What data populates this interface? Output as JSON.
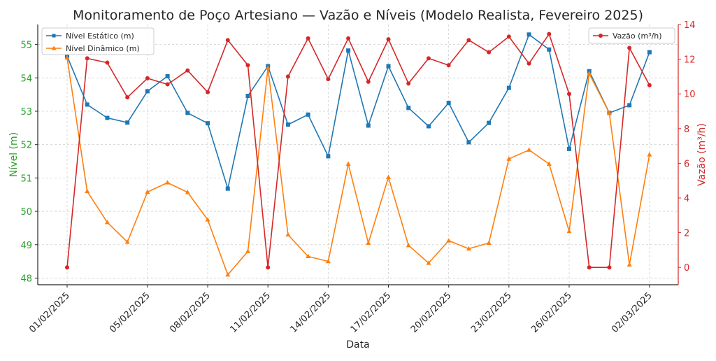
{
  "chart_data": {
    "type": "line",
    "title": "Monitoramento de Poço Artesiano — Vazão e Níveis (Modelo Realista, Fevereiro 2025)",
    "xlabel": "Data",
    "ylabel_left": "Nível (m)",
    "ylabel_right": "Vazão (m³/h)",
    "ylim_left": [
      47.8,
      55.6
    ],
    "ylim_right": [
      -1,
      14
    ],
    "yticks_left": [
      48,
      49,
      50,
      51,
      52,
      53,
      54,
      55
    ],
    "yticks_right": [
      0,
      2,
      4,
      6,
      8,
      10,
      12,
      14
    ],
    "grid": true,
    "x": [
      "2025-02-01",
      "2025-02-02",
      "2025-02-03",
      "2025-02-04",
      "2025-02-05",
      "2025-02-06",
      "2025-02-07",
      "2025-02-08",
      "2025-02-09",
      "2025-02-10",
      "2025-02-11",
      "2025-02-12",
      "2025-02-13",
      "2025-02-14",
      "2025-02-15",
      "2025-02-16",
      "2025-02-17",
      "2025-02-18",
      "2025-02-19",
      "2025-02-20",
      "2025-02-21",
      "2025-02-22",
      "2025-02-23",
      "2025-02-24",
      "2025-02-25",
      "2025-02-26",
      "2025-02-27",
      "2025-02-28",
      "2025-03-01",
      "2025-03-02"
    ],
    "xtick_labels": [
      "01/02/2025",
      "02/03/2025",
      "05/02/2025",
      "08/02/2025",
      "11/02/2025",
      "14/02/2025",
      "17/02/2025",
      "20/02/2025",
      "23/02/2025",
      "26/02/2025"
    ],
    "xtick_positions": [
      "2025-02-01",
      "2025-03-02",
      "2025-02-05",
      "2025-02-08",
      "2025-02-11",
      "2025-02-14",
      "2025-02-17",
      "2025-02-20",
      "2025-02-23",
      "2025-02-26"
    ],
    "series": [
      {
        "name": "Nível Estático (m)",
        "axis": "left",
        "color": "#1f77b4",
        "marker": "square",
        "values": [
          54.65,
          53.2,
          52.8,
          52.66,
          53.6,
          54.05,
          52.95,
          52.64,
          50.68,
          53.46,
          54.35,
          52.6,
          52.9,
          51.65,
          54.82,
          52.57,
          54.35,
          53.1,
          52.55,
          53.25,
          52.07,
          52.65,
          53.7,
          55.3,
          54.85,
          51.87,
          54.2,
          52.95,
          53.18,
          54.77
        ]
      },
      {
        "name": "Nível Dinâmico (m)",
        "axis": "left",
        "color": "#ff7f0e",
        "marker": "triangle",
        "values": [
          54.6,
          50.6,
          49.67,
          49.08,
          50.58,
          50.86,
          50.57,
          49.75,
          48.1,
          48.8,
          54.3,
          49.3,
          48.65,
          48.5,
          51.42,
          49.05,
          51.02,
          48.98,
          48.45,
          49.12,
          48.88,
          49.05,
          51.57,
          51.84,
          51.42,
          49.4,
          54.13,
          52.95,
          48.4,
          51.7
        ]
      },
      {
        "name": "Vazão (m³/h)",
        "axis": "right",
        "color": "#d62728",
        "marker": "circle",
        "values": [
          0,
          12.05,
          11.8,
          9.8,
          10.9,
          10.55,
          11.35,
          10.1,
          13.1,
          11.65,
          0,
          11,
          13.2,
          10.85,
          13.2,
          10.7,
          13.15,
          10.6,
          12.05,
          11.65,
          13.1,
          12.4,
          13.3,
          11.75,
          13.45,
          10,
          0,
          0,
          12.65,
          10.5
        ]
      }
    ],
    "legend_left_position": "top-left",
    "legend_right_position": "top-right"
  }
}
